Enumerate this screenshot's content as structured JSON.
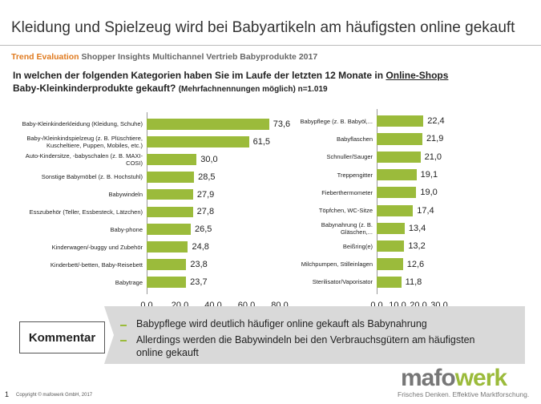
{
  "header": {
    "title": "Kleidung und Spielzeug wird bei Babyartikeln am häufigsten online gekauft",
    "trend": "Trend Evaluation",
    "subtitle": "Shopper Insights Multichannel Vertrieb Babyprodukte 2017",
    "question": {
      "before": "In welchen der folgenden Kategorien haben Sie im Laufe der letzten 12 Monate in ",
      "underlined": "Online-Shops",
      "after": " Baby-Kleinkinderprodukte gekauft?",
      "note": "(Mehrfachnennungen möglich) n=1.019"
    }
  },
  "chart_data": [
    {
      "type": "bar",
      "orientation": "horizontal",
      "color": "#9bbb3b",
      "categories": [
        "Baby-Kleinkinderkleidung (Kleidung, Schuhe)",
        "Baby-/Kleinkindspielzeug (z. B. Plüschtiere, Kuscheltiere, Puppen, Mobiles, etc.)",
        "Auto-Kindersitze, -babyschalen (z. B. MAXI-COSI)",
        "Sonstige Babymöbel (z. B. Hochstuhl)",
        "Babywindeln",
        "Esszubehör (Teller, Essbesteck, Lätzchen)",
        "Baby-phone",
        "Kinderwagen/-buggy und Zubehör",
        "Kinderbett/-betten, Baby-Reisebett",
        "Babytrage"
      ],
      "values": [
        73.6,
        61.5,
        30.0,
        28.5,
        27.9,
        27.8,
        26.5,
        24.8,
        23.8,
        23.7
      ],
      "value_labels": [
        "73,6",
        "61,5",
        "30,0",
        "28,5",
        "27,9",
        "27,8",
        "26,5",
        "24,8",
        "23,8",
        "23,7"
      ],
      "xlim": [
        0,
        80
      ],
      "xticks": [
        {
          "value": 0,
          "label": "0,0"
        },
        {
          "value": 20,
          "label": "20,0"
        },
        {
          "value": 40,
          "label": "40,0"
        },
        {
          "value": 60,
          "label": "60,0"
        },
        {
          "value": 80,
          "label": "80,0"
        }
      ]
    },
    {
      "type": "bar",
      "orientation": "horizontal",
      "color": "#9bbb3b",
      "categories": [
        "Babypflege (z. B. Babyöl,...",
        "Babyflaschen",
        "Schnuller/Sauger",
        "Treppengitter",
        "Fieberthermometer",
        "Töpfchen, WC-Sitze",
        "Babynahrung (z. B. Gläschen,...",
        "Beißring(e)",
        "Milchpumpen, Stilleinlagen",
        "Sterilisator/Vaporisator"
      ],
      "values": [
        22.4,
        21.9,
        21.0,
        19.1,
        19.0,
        17.4,
        13.4,
        13.2,
        12.6,
        11.8
      ],
      "value_labels": [
        "22,4",
        "21,9",
        "21,0",
        "19,1",
        "19,0",
        "17,4",
        "13,4",
        "13,2",
        "12,6",
        "11,8"
      ],
      "xlim": [
        0,
        30
      ],
      "xticks": [
        {
          "value": 0,
          "label": "0,0"
        },
        {
          "value": 10,
          "label": "10,0"
        },
        {
          "value": 20,
          "label": "20,0"
        },
        {
          "value": 30,
          "label": "30,0"
        }
      ]
    }
  ],
  "comment": {
    "label": "Kommentar",
    "bullets": [
      "Babypflege wird deutlich häufiger online gekauft als Babynahrung",
      "Allerdings werden die Babywindeln bei den Verbrauchsgütern am häufigsten online gekauft"
    ]
  },
  "footer": {
    "page": "1",
    "copyright": "Copyright © mafowerk GmbH, 2017"
  },
  "logo": {
    "part1": "mafo",
    "part2": "werk",
    "tagline": "Frisches Denken. Effektive Marktforschung."
  }
}
